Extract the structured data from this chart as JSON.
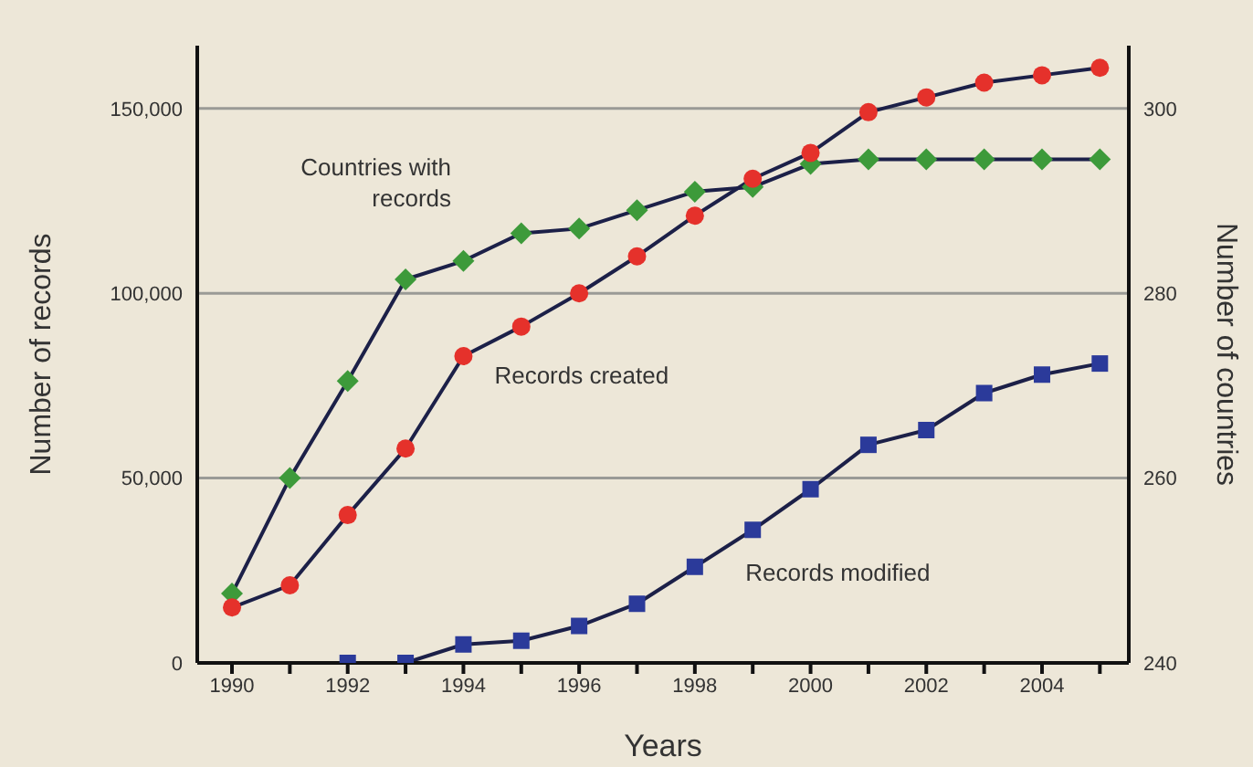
{
  "chart_data": {
    "type": "line",
    "xlabel": "Years",
    "ylabel": "Number of records",
    "y2label": "Number of countries",
    "x": [
      1990,
      1991,
      1992,
      1993,
      1994,
      1995,
      1996,
      1997,
      1998,
      1999,
      2000,
      2001,
      2002,
      2003,
      2004,
      2005
    ],
    "series": [
      {
        "name": "Countries with records",
        "color": "#3d9a3a",
        "marker": "diamond",
        "axis": "y2",
        "values": [
          247.5,
          260,
          270.5,
          281.5,
          283.5,
          286.5,
          287,
          289,
          291,
          291.5,
          294,
          294.5,
          294.5,
          294.5,
          294.5,
          294.5
        ]
      },
      {
        "name": "Records created",
        "color": "#e5312b",
        "marker": "circle",
        "values": [
          15000,
          21000,
          40000,
          58000,
          83000,
          91000,
          100000,
          110000,
          121000,
          131000,
          138000,
          149000,
          153000,
          157000,
          159000,
          161000
        ]
      },
      {
        "name": "Records modified",
        "color": "#2b3a9a",
        "marker": "square",
        "values": [
          null,
          null,
          0,
          0,
          5000,
          6000,
          10000,
          16000,
          26000,
          36000,
          47000,
          59000,
          63000,
          73000,
          78000,
          81000
        ]
      }
    ],
    "xlim": [
      1989.4,
      2005.5
    ],
    "xticks": [
      1990,
      {
        "value": 1991,
        "label": null
      },
      1992,
      {
        "value": 1993,
        "label": null
      },
      1994,
      {
        "value": 1995,
        "label": null
      },
      1996,
      {
        "value": 1997,
        "label": null
      },
      1998,
      {
        "value": 1999,
        "label": null
      },
      2000,
      {
        "value": 2001,
        "label": null
      },
      2002,
      {
        "value": 2003,
        "label": null
      },
      2004,
      {
        "value": 2005,
        "label": null
      }
    ],
    "ylim": [
      0,
      167000
    ],
    "yticks": [
      0,
      {
        "value": 50000,
        "label": "50,000"
      },
      {
        "value": 100000,
        "label": "100,000"
      },
      {
        "value": 150000,
        "label": "150,000"
      }
    ],
    "y2lim": [
      240,
      306.8
    ],
    "y2ticks": [
      240,
      260,
      280,
      300
    ],
    "grid": "y"
  }
}
